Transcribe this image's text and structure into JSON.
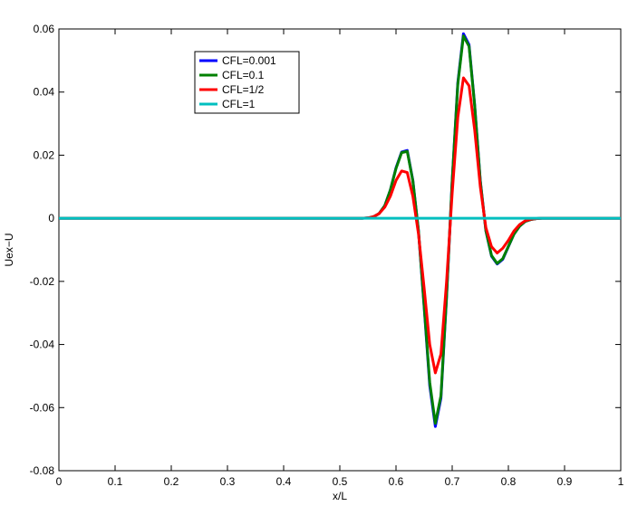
{
  "chart_data": {
    "type": "line",
    "xlabel": "x/L",
    "ylabel": "Uex−U",
    "x": [
      0,
      0.54,
      0.55,
      0.56,
      0.57,
      0.58,
      0.59,
      0.6,
      0.61,
      0.62,
      0.63,
      0.64,
      0.65,
      0.66,
      0.67,
      0.68,
      0.69,
      0.7,
      0.71,
      0.72,
      0.73,
      0.74,
      0.75,
      0.76,
      0.77,
      0.78,
      0.79,
      0.8,
      0.81,
      0.82,
      0.83,
      0.84,
      0.85,
      0.86,
      1
    ],
    "series": [
      {
        "name": "CFL=0.001",
        "color": "#0000ff",
        "values": [
          0,
          0,
          0.0001,
          0.0005,
          0.0015,
          0.004,
          0.009,
          0.016,
          0.021,
          0.0215,
          0.012,
          -0.004,
          -0.028,
          -0.053,
          -0.066,
          -0.057,
          -0.025,
          0.012,
          0.043,
          0.0585,
          0.055,
          0.036,
          0.012,
          -0.004,
          -0.012,
          -0.0145,
          -0.013,
          -0.009,
          -0.005,
          -0.0025,
          -0.001,
          -0.0004,
          -0.0001,
          0,
          0
        ]
      },
      {
        "name": "CFL=0.1",
        "color": "#008000",
        "values": [
          0,
          0,
          0.0001,
          0.0005,
          0.0015,
          0.004,
          0.009,
          0.0158,
          0.0208,
          0.0212,
          0.0118,
          -0.004,
          -0.0275,
          -0.052,
          -0.065,
          -0.0562,
          -0.0245,
          0.0118,
          0.0425,
          0.0578,
          0.0545,
          0.0357,
          0.0118,
          -0.004,
          -0.0118,
          -0.0143,
          -0.0128,
          -0.0089,
          -0.005,
          -0.0025,
          -0.001,
          -0.0004,
          -0.0001,
          0,
          0
        ]
      },
      {
        "name": "CFL=1/2",
        "color": "#ff0000",
        "values": [
          0,
          0,
          0.0001,
          0.0005,
          0.0015,
          0.0035,
          0.007,
          0.012,
          0.015,
          0.0145,
          0.007,
          -0.005,
          -0.022,
          -0.04,
          -0.049,
          -0.043,
          -0.02,
          0.008,
          0.032,
          0.0445,
          0.042,
          0.028,
          0.01,
          -0.003,
          -0.009,
          -0.011,
          -0.0095,
          -0.007,
          -0.004,
          -0.002,
          -0.0008,
          -0.0003,
          -0.0001,
          0,
          0
        ]
      },
      {
        "name": "CFL=1",
        "color": "#00bfbf",
        "values": [
          0,
          0,
          0,
          0,
          0,
          0,
          0,
          0,
          0,
          0,
          0,
          0,
          0,
          0,
          0,
          0,
          0,
          0,
          0,
          0,
          0,
          0,
          0,
          0,
          0,
          0,
          0,
          0,
          0,
          0,
          0,
          0,
          0,
          0,
          0
        ]
      }
    ],
    "xlim": [
      0,
      1
    ],
    "xticks": [
      0,
      0.1,
      0.2,
      0.3,
      0.4,
      0.5,
      0.6,
      0.7,
      0.8,
      0.9,
      1
    ],
    "ylim": [
      -0.08,
      0.06
    ],
    "yticks": [
      -0.08,
      -0.06,
      -0.04,
      -0.02,
      0,
      0.02,
      0.04,
      0.06
    ],
    "legend": "upper-left",
    "grid": false
  }
}
